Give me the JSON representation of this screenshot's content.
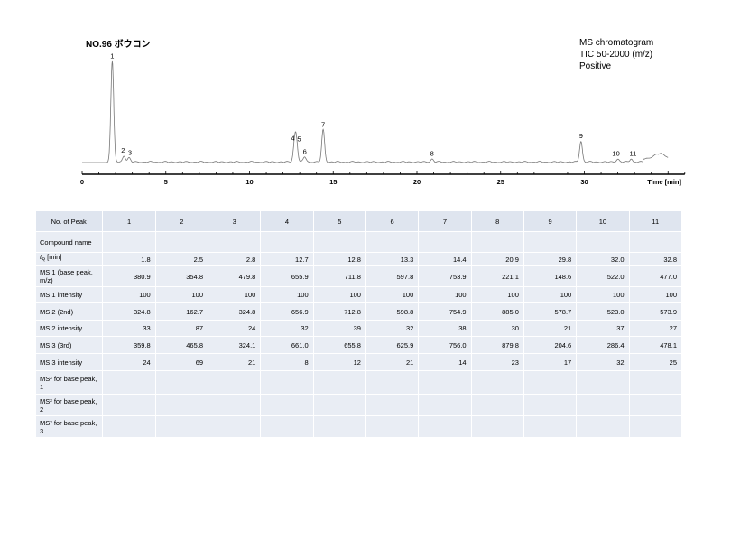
{
  "header": {
    "title": "NO.96 ボウコン",
    "info_lines": [
      "MS chromatogram",
      "TIC 50-2000 (m/z)",
      "Positive"
    ]
  },
  "chart_data": {
    "type": "line",
    "title": "NO.96 ボウコン",
    "xlabel": "Time [min]",
    "ylabel": "",
    "xlim": [
      0,
      36
    ],
    "x_ticks": [
      0,
      5,
      10,
      15,
      20,
      25,
      30
    ],
    "peaks": [
      {
        "label": "1",
        "x": 1.8,
        "y": 0.97
      },
      {
        "label": "2",
        "x": 2.5,
        "y": 0.06
      },
      {
        "label": "3",
        "x": 2.8,
        "y": 0.04
      },
      {
        "label": "4",
        "x": 12.7,
        "y": 0.18
      },
      {
        "label": "5",
        "x": 12.8,
        "y": 0.17
      },
      {
        "label": "6",
        "x": 13.3,
        "y": 0.05
      },
      {
        "label": "7",
        "x": 14.4,
        "y": 0.31
      },
      {
        "label": "8",
        "x": 20.9,
        "y": 0.03
      },
      {
        "label": "9",
        "x": 29.8,
        "y": 0.2
      },
      {
        "label": "10",
        "x": 32.0,
        "y": 0.03
      },
      {
        "label": "11",
        "x": 32.8,
        "y": 0.03
      }
    ],
    "baseline": 0.0
  },
  "table": {
    "header_label": "No. of Peak",
    "columns": [
      "1",
      "2",
      "3",
      "4",
      "5",
      "6",
      "7",
      "8",
      "9",
      "10",
      "11"
    ],
    "rows": [
      {
        "label": "Compound name",
        "values": [
          "",
          "",
          "",
          "",
          "",
          "",
          "",
          "",
          "",
          "",
          ""
        ]
      },
      {
        "label_main": "t",
        "label_sub": "R",
        "label_rest": " [min]",
        "values": [
          "1.8",
          "2.5",
          "2.8",
          "12.7",
          "12.8",
          "13.3",
          "14.4",
          "20.9",
          "29.8",
          "32.0",
          "32.8"
        ]
      },
      {
        "label": "MS 1 (base peak, m/z)",
        "values": [
          "380.9",
          "354.8",
          "479.8",
          "655.9",
          "711.8",
          "597.8",
          "753.9",
          "221.1",
          "148.6",
          "522.0",
          "477.0"
        ]
      },
      {
        "label": "MS 1 intensity",
        "values": [
          "100",
          "100",
          "100",
          "100",
          "100",
          "100",
          "100",
          "100",
          "100",
          "100",
          "100"
        ]
      },
      {
        "label": "MS 2 (2nd)",
        "values": [
          "324.8",
          "162.7",
          "324.8",
          "656.9",
          "712.8",
          "598.8",
          "754.9",
          "885.0",
          "578.7",
          "523.0",
          "573.9"
        ]
      },
      {
        "label": "MS 2 intensity",
        "values": [
          "33",
          "87",
          "24",
          "32",
          "39",
          "32",
          "38",
          "30",
          "21",
          "37",
          "27"
        ]
      },
      {
        "label": "MS 3 (3rd)",
        "values": [
          "359.8",
          "465.8",
          "324.1",
          "661.0",
          "655.8",
          "625.9",
          "756.0",
          "879.8",
          "204.6",
          "286.4",
          "478.1"
        ]
      },
      {
        "label": "MS 3 intensity",
        "values": [
          "24",
          "69",
          "21",
          "8",
          "12",
          "21",
          "14",
          "23",
          "17",
          "32",
          "25"
        ]
      },
      {
        "label": "MS² for base peak, 1",
        "values": [
          "",
          "",
          "",
          "",
          "",
          "",
          "",
          "",
          "",
          "",
          ""
        ]
      },
      {
        "label": "MS² for base peak, 2",
        "values": [
          "",
          "",
          "",
          "",
          "",
          "",
          "",
          "",
          "",
          "",
          ""
        ]
      },
      {
        "label": "MS² for base peak, 3",
        "values": [
          "",
          "",
          "",
          "",
          "",
          "",
          "",
          "",
          "",
          "",
          ""
        ]
      }
    ]
  }
}
